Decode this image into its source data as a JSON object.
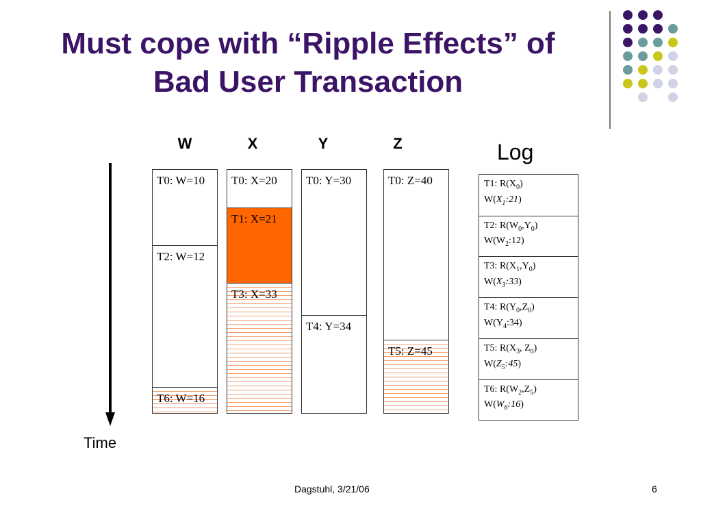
{
  "slide": {
    "title_line1": "Must cope with “Ripple Effects” of",
    "title_line2": "Bad User Transaction",
    "footer": "Dagstuhl, 3/21/06",
    "page_number": "6",
    "time_label": "Time",
    "log_title": "Log"
  },
  "colors": {
    "title": "#3b1466",
    "orange_fill": "#ff6600",
    "hatch_line": "#f3a070",
    "dot_purple": "#3b1466",
    "dot_teal": "#6a9c9c",
    "dot_yellow": "#c9c81a",
    "dot_lavender": "#d2d2e6"
  },
  "dots": [
    [
      "purple",
      "purple",
      "purple",
      null
    ],
    [
      "purple",
      "purple",
      "purple",
      "teal"
    ],
    [
      "purple",
      "teal",
      "teal",
      "yellow"
    ],
    [
      "teal",
      "teal",
      "yellow",
      "lavender"
    ],
    [
      "teal",
      "yellow",
      "lavender",
      "lavender"
    ],
    [
      "yellow",
      "yellow",
      "lavender",
      "lavender"
    ],
    [
      null,
      "lavender",
      null,
      "lavender"
    ]
  ],
  "columns": [
    {
      "header": "W",
      "cells": [
        {
          "label": "T0: W=10",
          "fill": "none"
        },
        {
          "label": "T2: W=12",
          "fill": "none"
        },
        {
          "label": "T6: W=16",
          "fill": "hatch"
        }
      ]
    },
    {
      "header": "X",
      "cells": [
        {
          "label": "T0: X=20",
          "fill": "none"
        },
        {
          "label": "T1: X=21",
          "fill": "orange"
        },
        {
          "label": "T3: X=33",
          "fill": "hatch"
        }
      ]
    },
    {
      "header": "Y",
      "cells": [
        {
          "label": "T0: Y=30",
          "fill": "none"
        },
        {
          "label": "T4: Y=34",
          "fill": "none"
        }
      ]
    },
    {
      "header": "Z",
      "cells": [
        {
          "label": "T0: Z=40",
          "fill": "none"
        },
        {
          "label": "T5: Z=45",
          "fill": "hatch"
        }
      ]
    }
  ],
  "log": [
    {
      "read": [
        "T1: R(X",
        {
          "sub": "0"
        },
        ")"
      ],
      "write": [
        "W(",
        {
          "it": "X"
        },
        {
          "sub": "1",
          "it": true
        },
        {
          "it": ":21"
        },
        ")"
      ]
    },
    {
      "read": [
        "T2: R(W",
        {
          "sub": "0"
        },
        ",Y",
        {
          "sub": "0"
        },
        ")"
      ],
      "write": [
        "W(W",
        {
          "sub": "2"
        },
        ":12)"
      ]
    },
    {
      "read": [
        "T3: R(X",
        {
          "sub": "1"
        },
        ",Y",
        {
          "sub": "0"
        },
        ")"
      ],
      "write": [
        "W(",
        {
          "it": "X"
        },
        {
          "sub": "3",
          "it": true
        },
        {
          "it": ":33"
        },
        ")"
      ]
    },
    {
      "read": [
        "T4: R(Y",
        {
          "sub": "0"
        },
        ",Z",
        {
          "sub": "0"
        },
        ")"
      ],
      "write": [
        "W(Y",
        {
          "sub": "4"
        },
        ":34)"
      ]
    },
    {
      "read": [
        "T5: R(X",
        {
          "sub": "3"
        },
        ", Z",
        {
          "sub": "0"
        },
        ")"
      ],
      "write": [
        "W(",
        {
          "it": "Z"
        },
        {
          "sub": "5",
          "it": true
        },
        {
          "it": ":45"
        },
        ")"
      ]
    },
    {
      "read": [
        "T6: R(W",
        {
          "sub": "2"
        },
        ",Z",
        {
          "sub": "5"
        },
        ")"
      ],
      "write": [
        "W(",
        {
          "it": "W"
        },
        {
          "sub": "6",
          "it": true
        },
        {
          "it": ":16"
        },
        ")"
      ]
    }
  ]
}
